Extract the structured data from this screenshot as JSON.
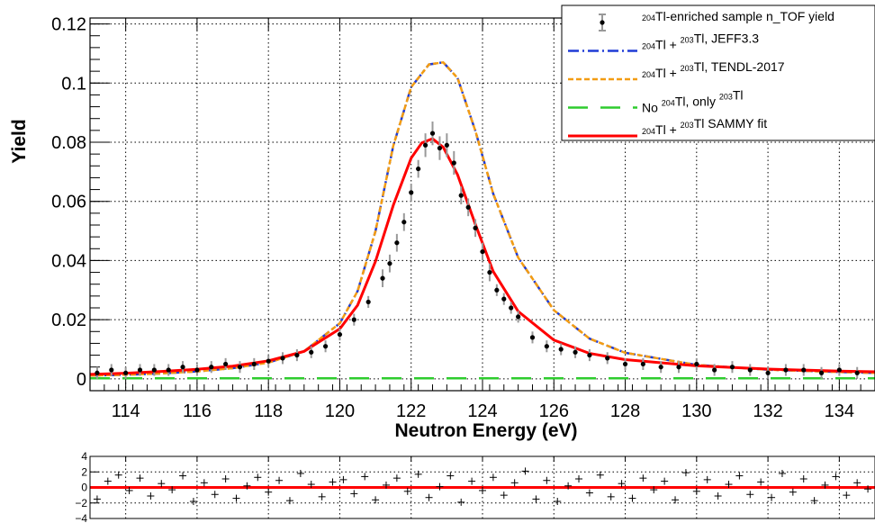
{
  "chart_data": [
    {
      "type": "scatter",
      "panel": "main",
      "xlabel": "Neutron Energy (eV)",
      "ylabel": "Yield",
      "xlim": [
        113,
        135
      ],
      "ylim": [
        -0.004,
        0.122
      ],
      "x_ticks": [
        114,
        116,
        118,
        120,
        122,
        124,
        126,
        128,
        130,
        132,
        134
      ],
      "y_ticks": [
        0,
        0.02,
        0.04,
        0.06,
        0.08,
        0.1,
        0.12
      ],
      "x_tick_labels": [
        "114",
        "116",
        "118",
        "120",
        "122",
        "124",
        "126",
        "128",
        "130",
        "132",
        "134"
      ],
      "y_tick_labels": [
        "0",
        "0.02",
        "0.04",
        "0.06",
        "0.08",
        "0.1",
        "0.12"
      ],
      "grid": true,
      "legend_position": "top-right",
      "series": [
        {
          "name": "204Tl-enriched sample n_TOF yield",
          "legend_parts": [
            {
              "sup": "204"
            },
            {
              "t": "Tl-enriched sample n_TOF yield"
            }
          ],
          "style": "points-with-errorbars",
          "color": "#000000",
          "errcolor": "#999999",
          "x": [
            113.2,
            113.6,
            114.0,
            114.4,
            114.8,
            115.2,
            115.6,
            116.0,
            116.4,
            116.8,
            117.2,
            117.6,
            118.0,
            118.4,
            118.8,
            119.2,
            119.6,
            120.0,
            120.4,
            120.8,
            121.2,
            121.4,
            121.6,
            121.8,
            122.0,
            122.2,
            122.4,
            122.6,
            122.8,
            123.0,
            123.2,
            123.4,
            123.6,
            123.8,
            124.0,
            124.2,
            124.4,
            124.6,
            124.8,
            125.0,
            125.4,
            125.8,
            126.2,
            126.6,
            127.0,
            127.5,
            128.0,
            128.5,
            129.0,
            129.5,
            130.0,
            130.5,
            131.0,
            131.5,
            132.0,
            132.5,
            133.0,
            133.5,
            134.0,
            134.5
          ],
          "y": [
            0.002,
            0.003,
            0.002,
            0.003,
            0.003,
            0.003,
            0.004,
            0.003,
            0.004,
            0.005,
            0.004,
            0.005,
            0.006,
            0.007,
            0.008,
            0.009,
            0.011,
            0.015,
            0.02,
            0.026,
            0.034,
            0.039,
            0.046,
            0.053,
            0.063,
            0.071,
            0.079,
            0.083,
            0.078,
            0.079,
            0.073,
            0.062,
            0.058,
            0.051,
            0.043,
            0.036,
            0.03,
            0.027,
            0.024,
            0.021,
            0.014,
            0.011,
            0.01,
            0.009,
            0.008,
            0.007,
            0.005,
            0.005,
            0.004,
            0.004,
            0.005,
            0.003,
            0.004,
            0.003,
            0.002,
            0.003,
            0.003,
            0.002,
            0.003,
            0.002
          ],
          "err": [
            0.002,
            0.002,
            0.002,
            0.002,
            0.002,
            0.002,
            0.002,
            0.002,
            0.002,
            0.002,
            0.002,
            0.002,
            0.002,
            0.002,
            0.002,
            0.002,
            0.002,
            0.002,
            0.002,
            0.002,
            0.003,
            0.003,
            0.003,
            0.003,
            0.003,
            0.003,
            0.004,
            0.004,
            0.004,
            0.004,
            0.004,
            0.003,
            0.003,
            0.003,
            0.003,
            0.003,
            0.002,
            0.002,
            0.002,
            0.002,
            0.002,
            0.002,
            0.002,
            0.002,
            0.002,
            0.002,
            0.002,
            0.002,
            0.002,
            0.002,
            0.002,
            0.002,
            0.002,
            0.002,
            0.002,
            0.002,
            0.002,
            0.002,
            0.002,
            0.002
          ]
        },
        {
          "name": "204Tl + 203Tl, JEFF3.3",
          "legend_parts": [
            {
              "sup": "204"
            },
            {
              "t": "Tl + "
            },
            {
              "sup": "203"
            },
            {
              "t": "Tl, JEFF3.3"
            }
          ],
          "style": "dash-dot",
          "color": "#1f3bd6",
          "x": [
            113,
            114,
            115,
            116,
            117,
            118,
            119,
            120,
            120.5,
            121,
            121.5,
            122,
            122.5,
            122.9,
            123.3,
            123.8,
            124.3,
            125,
            126,
            127,
            128,
            130,
            132,
            134,
            135
          ],
          "y": [
            0.0011,
            0.0014,
            0.0018,
            0.0025,
            0.0036,
            0.0055,
            0.0093,
            0.0188,
            0.0297,
            0.0499,
            0.0788,
            0.0986,
            0.1063,
            0.107,
            0.1017,
            0.0838,
            0.0626,
            0.041,
            0.0232,
            0.0136,
            0.0088,
            0.0047,
            0.0031,
            0.0023,
            0.002
          ]
        },
        {
          "name": "204Tl + 203Tl, TENDL-2017",
          "legend_parts": [
            {
              "sup": "204"
            },
            {
              "t": "Tl + "
            },
            {
              "sup": "203"
            },
            {
              "t": "Tl, TENDL-2017"
            }
          ],
          "style": "dashed",
          "color": "#f39c12",
          "x": [
            113,
            114,
            115,
            116,
            117,
            118,
            119,
            120,
            120.5,
            121,
            121.5,
            122,
            122.5,
            122.9,
            123.3,
            123.8,
            124.3,
            125,
            126,
            127,
            128,
            130,
            132,
            134,
            135
          ],
          "y": [
            0.0011,
            0.0014,
            0.0018,
            0.0025,
            0.0036,
            0.0055,
            0.0093,
            0.0188,
            0.0297,
            0.0499,
            0.0788,
            0.0986,
            0.1063,
            0.107,
            0.1017,
            0.0838,
            0.0626,
            0.041,
            0.0232,
            0.0136,
            0.0088,
            0.0047,
            0.0031,
            0.0023,
            0.002
          ]
        },
        {
          "name": "No 204Tl, only 203Tl",
          "legend_parts": [
            {
              "t": "No "
            },
            {
              "sup": "204"
            },
            {
              "t": "Tl, only "
            },
            {
              "sup": "203"
            },
            {
              "t": "Tl"
            }
          ],
          "style": "long-dash",
          "color": "#2ecc2e",
          "x": [
            113,
            135
          ],
          "y": [
            0.0002,
            0.0002
          ]
        },
        {
          "name": "204Tl + 203Tl SAMMY fit",
          "legend_parts": [
            {
              "sup": "204"
            },
            {
              "t": "Tl + "
            },
            {
              "sup": "203"
            },
            {
              "t": "Tl SAMMY fit"
            }
          ],
          "style": "solid",
          "color": "#ff0000",
          "x": [
            113,
            114,
            115,
            116,
            117,
            118,
            119,
            120,
            120.5,
            121,
            121.5,
            122,
            122.3,
            122.6,
            122.9,
            123.3,
            123.8,
            124.3,
            125,
            126,
            127,
            128,
            130,
            132,
            134,
            135
          ],
          "y": [
            0.0015,
            0.0019,
            0.0025,
            0.0032,
            0.0043,
            0.0061,
            0.0093,
            0.0169,
            0.0249,
            0.0397,
            0.0587,
            0.0746,
            0.0798,
            0.0812,
            0.0783,
            0.069,
            0.0522,
            0.0363,
            0.0228,
            0.0131,
            0.0086,
            0.0065,
            0.0044,
            0.0033,
            0.0026,
            0.0024
          ]
        }
      ]
    },
    {
      "type": "scatter",
      "panel": "residuals",
      "xlim": [
        113,
        135
      ],
      "ylim": [
        -4,
        4
      ],
      "y_ticks": [
        4,
        2,
        0,
        -2,
        -4
      ],
      "y_tick_labels": [
        "4",
        "2",
        "0",
        "−2",
        "−4"
      ],
      "grid": true,
      "zero_line_color": "#ff0000",
      "point_color": "#000000",
      "x": [
        113.2,
        113.5,
        113.8,
        114.1,
        114.4,
        114.7,
        115.0,
        115.3,
        115.6,
        115.9,
        116.2,
        116.5,
        116.8,
        117.1,
        117.4,
        117.7,
        118.0,
        118.3,
        118.6,
        118.9,
        119.2,
        119.5,
        119.8,
        120.1,
        120.4,
        120.7,
        121.0,
        121.3,
        121.6,
        121.9,
        122.2,
        122.5,
        122.8,
        123.1,
        123.4,
        123.7,
        124.0,
        124.3,
        124.6,
        124.9,
        125.2,
        125.5,
        125.8,
        126.1,
        126.4,
        126.7,
        127.0,
        127.3,
        127.6,
        127.9,
        128.2,
        128.5,
        128.8,
        129.1,
        129.4,
        129.7,
        130.0,
        130.3,
        130.6,
        130.9,
        131.2,
        131.5,
        131.8,
        132.1,
        132.4,
        132.7,
        133.0,
        133.3,
        133.6,
        133.9,
        134.2,
        134.5,
        134.8
      ],
      "y": [
        -1.5,
        0.8,
        1.6,
        -0.4,
        1.2,
        -1.1,
        0.5,
        -0.3,
        1.5,
        -1.8,
        0.6,
        -0.9,
        1.1,
        -1.4,
        0.2,
        1.3,
        -0.6,
        0.9,
        -1.7,
        1.8,
        0.4,
        -1.2,
        0.7,
        1.0,
        -0.8,
        1.4,
        -1.6,
        0.3,
        1.2,
        -0.5,
        1.7,
        -1.3,
        0.1,
        1.5,
        -1.9,
        0.8,
        -0.4,
        1.3,
        -1.0,
        0.6,
        2.1,
        -1.5,
        0.9,
        -1.8,
        0.2,
        1.1,
        -0.7,
        1.6,
        -1.2,
        0.5,
        -1.4,
        1.2,
        -0.3,
        0.8,
        -1.6,
        1.9,
        -0.5,
        1.0,
        -1.1,
        0.4,
        1.5,
        -0.9,
        0.7,
        -1.3,
        1.8,
        -0.6,
        1.1,
        -1.7,
        0.3,
        1.4,
        -1.0,
        0.6,
        -0.2
      ]
    }
  ]
}
